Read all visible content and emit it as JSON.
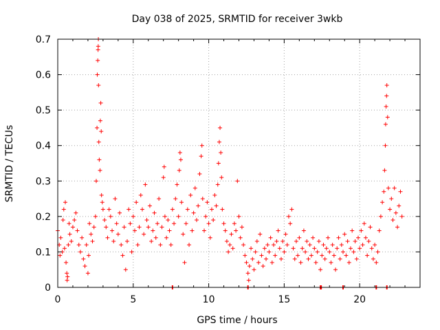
{
  "chart_data": {
    "type": "scatter",
    "title": "Day 038 of 2025, SRMTID for receiver 3wkb",
    "xlabel": "GPS time / hours",
    "ylabel": "SRMTID / TECUs",
    "xlim": [
      0,
      24
    ],
    "ylim": [
      0,
      0.7
    ],
    "xticks": [
      0,
      5,
      10,
      15,
      20
    ],
    "yticks": [
      0,
      0.1,
      0.2,
      0.3,
      0.4,
      0.5,
      0.6,
      0.7
    ],
    "ytick_labels": [
      "0",
      "0.1",
      "0.2",
      "0.3",
      "0.4",
      "0.5",
      "0.6",
      "0.7"
    ],
    "grid": true,
    "marker": "+",
    "marker_color": "#ff0000",
    "grid_color": "#a0a0a0",
    "series": [
      {
        "name": "SRMTID",
        "points": [
          [
            0.0,
            0.16
          ],
          [
            0.1,
            0.12
          ],
          [
            0.15,
            0.09
          ],
          [
            0.2,
            0.14
          ],
          [
            0.3,
            0.1
          ],
          [
            0.35,
            0.19
          ],
          [
            0.4,
            0.22
          ],
          [
            0.45,
            0.11
          ],
          [
            0.5,
            0.24
          ],
          [
            0.55,
            0.07
          ],
          [
            0.6,
            0.04
          ],
          [
            0.62,
            0.02
          ],
          [
            0.65,
            0.03
          ],
          [
            0.7,
            0.12
          ],
          [
            0.75,
            0.18
          ],
          [
            0.8,
            0.15
          ],
          [
            0.9,
            0.13
          ],
          [
            1.0,
            0.17
          ],
          [
            1.1,
            0.19
          ],
          [
            1.2,
            0.21
          ],
          [
            1.3,
            0.16
          ],
          [
            1.4,
            0.12
          ],
          [
            1.5,
            0.1
          ],
          [
            1.6,
            0.14
          ],
          [
            1.7,
            0.08
          ],
          [
            1.8,
            0.06
          ],
          [
            1.9,
            0.12
          ],
          [
            2.0,
            0.04
          ],
          [
            2.05,
            0.09
          ],
          [
            2.1,
            0.18
          ],
          [
            2.2,
            0.15
          ],
          [
            2.3,
            0.13
          ],
          [
            2.4,
            0.17
          ],
          [
            2.5,
            0.2
          ],
          [
            2.55,
            0.3
          ],
          [
            2.6,
            0.45
          ],
          [
            2.62,
            0.6
          ],
          [
            2.65,
            0.64
          ],
          [
            2.67,
            0.67
          ],
          [
            2.68,
            0.68
          ],
          [
            2.69,
            0.7
          ],
          [
            2.7,
            0.57
          ],
          [
            2.72,
            0.41
          ],
          [
            2.75,
            0.36
          ],
          [
            2.8,
            0.33
          ],
          [
            2.82,
            0.47
          ],
          [
            2.85,
            0.52
          ],
          [
            2.88,
            0.44
          ],
          [
            2.9,
            0.26
          ],
          [
            2.95,
            0.24
          ],
          [
            3.0,
            0.22
          ],
          [
            3.1,
            0.19
          ],
          [
            3.2,
            0.17
          ],
          [
            3.3,
            0.14
          ],
          [
            3.4,
            0.22
          ],
          [
            3.5,
            0.2
          ],
          [
            3.6,
            0.16
          ],
          [
            3.7,
            0.13
          ],
          [
            3.8,
            0.25
          ],
          [
            3.9,
            0.18
          ],
          [
            4.0,
            0.15
          ],
          [
            4.1,
            0.21
          ],
          [
            4.2,
            0.12
          ],
          [
            4.3,
            0.09
          ],
          [
            4.4,
            0.17
          ],
          [
            4.5,
            0.05
          ],
          [
            4.6,
            0.13
          ],
          [
            4.7,
            0.22
          ],
          [
            4.8,
            0.18
          ],
          [
            4.9,
            0.1
          ],
          [
            5.0,
            0.2
          ],
          [
            5.1,
            0.16
          ],
          [
            5.2,
            0.24
          ],
          [
            5.3,
            0.12
          ],
          [
            5.4,
            0.17
          ],
          [
            5.5,
            0.26
          ],
          [
            5.6,
            0.22
          ],
          [
            5.7,
            0.15
          ],
          [
            5.8,
            0.29
          ],
          [
            5.9,
            0.19
          ],
          [
            6.0,
            0.17
          ],
          [
            6.1,
            0.23
          ],
          [
            6.2,
            0.13
          ],
          [
            6.3,
            0.16
          ],
          [
            6.4,
            0.21
          ],
          [
            6.5,
            0.14
          ],
          [
            6.6,
            0.18
          ],
          [
            6.7,
            0.25
          ],
          [
            6.8,
            0.12
          ],
          [
            6.9,
            0.17
          ],
          [
            7.0,
            0.31
          ],
          [
            7.05,
            0.34
          ],
          [
            7.1,
            0.2
          ],
          [
            7.2,
            0.14
          ],
          [
            7.3,
            0.19
          ],
          [
            7.4,
            0.16
          ],
          [
            7.5,
            0.12
          ],
          [
            7.6,
            0.22
          ],
          [
            7.7,
            0.18
          ],
          [
            7.8,
            0.25
          ],
          [
            7.9,
            0.29
          ],
          [
            8.0,
            0.2
          ],
          [
            8.05,
            0.33
          ],
          [
            8.1,
            0.38
          ],
          [
            8.15,
            0.36
          ],
          [
            8.2,
            0.24
          ],
          [
            8.3,
            0.15
          ],
          [
            8.4,
            0.07
          ],
          [
            8.5,
            0.18
          ],
          [
            8.6,
            0.22
          ],
          [
            8.7,
            0.12
          ],
          [
            8.8,
            0.26
          ],
          [
            8.9,
            0.16
          ],
          [
            9.0,
            0.21
          ],
          [
            9.1,
            0.28
          ],
          [
            9.2,
            0.19
          ],
          [
            9.3,
            0.23
          ],
          [
            9.4,
            0.32
          ],
          [
            9.5,
            0.37
          ],
          [
            9.55,
            0.4
          ],
          [
            9.6,
            0.25
          ],
          [
            9.7,
            0.16
          ],
          [
            9.8,
            0.2
          ],
          [
            9.9,
            0.24
          ],
          [
            10.0,
            0.18
          ],
          [
            10.1,
            0.14
          ],
          [
            10.2,
            0.22
          ],
          [
            10.3,
            0.19
          ],
          [
            10.4,
            0.26
          ],
          [
            10.5,
            0.23
          ],
          [
            10.6,
            0.29
          ],
          [
            10.65,
            0.35
          ],
          [
            10.7,
            0.41
          ],
          [
            10.75,
            0.45
          ],
          [
            10.8,
            0.38
          ],
          [
            10.85,
            0.31
          ],
          [
            10.9,
            0.22
          ],
          [
            11.0,
            0.18
          ],
          [
            11.1,
            0.16
          ],
          [
            11.2,
            0.13
          ],
          [
            11.3,
            0.1
          ],
          [
            11.4,
            0.12
          ],
          [
            11.5,
            0.15
          ],
          [
            11.6,
            0.11
          ],
          [
            11.7,
            0.18
          ],
          [
            11.8,
            0.16
          ],
          [
            11.9,
            0.3
          ],
          [
            12.0,
            0.2
          ],
          [
            12.1,
            0.14
          ],
          [
            12.2,
            0.17
          ],
          [
            12.3,
            0.12
          ],
          [
            12.4,
            0.09
          ],
          [
            12.5,
            0.07
          ],
          [
            12.6,
            0.04
          ],
          [
            12.65,
            0.02
          ],
          [
            12.7,
            0.06
          ],
          [
            12.8,
            0.11
          ],
          [
            12.9,
            0.08
          ],
          [
            13.0,
            0.05
          ],
          [
            13.1,
            0.1
          ],
          [
            13.2,
            0.13
          ],
          [
            13.3,
            0.07
          ],
          [
            13.4,
            0.15
          ],
          [
            13.5,
            0.09
          ],
          [
            13.6,
            0.06
          ],
          [
            13.7,
            0.11
          ],
          [
            13.8,
            0.08
          ],
          [
            13.9,
            0.12
          ],
          [
            14.0,
            0.1
          ],
          [
            14.1,
            0.14
          ],
          [
            14.2,
            0.07
          ],
          [
            14.3,
            0.12
          ],
          [
            14.4,
            0.09
          ],
          [
            14.5,
            0.13
          ],
          [
            14.6,
            0.16
          ],
          [
            14.7,
            0.11
          ],
          [
            14.8,
            0.08
          ],
          [
            14.9,
            0.13
          ],
          [
            15.0,
            0.1
          ],
          [
            15.1,
            0.15
          ],
          [
            15.2,
            0.12
          ],
          [
            15.3,
            0.2
          ],
          [
            15.4,
            0.18
          ],
          [
            15.5,
            0.22
          ],
          [
            15.6,
            0.11
          ],
          [
            15.7,
            0.08
          ],
          [
            15.8,
            0.13
          ],
          [
            15.9,
            0.09
          ],
          [
            16.0,
            0.14
          ],
          [
            16.1,
            0.07
          ],
          [
            16.2,
            0.11
          ],
          [
            16.3,
            0.16
          ],
          [
            16.4,
            0.1
          ],
          [
            16.5,
            0.13
          ],
          [
            16.6,
            0.08
          ],
          [
            16.7,
            0.12
          ],
          [
            16.8,
            0.09
          ],
          [
            16.9,
            0.14
          ],
          [
            17.0,
            0.11
          ],
          [
            17.1,
            0.07
          ],
          [
            17.2,
            0.1
          ],
          [
            17.3,
            0.13
          ],
          [
            17.4,
            0.05
          ],
          [
            17.5,
            0.09
          ],
          [
            17.6,
            0.12
          ],
          [
            17.7,
            0.08
          ],
          [
            17.8,
            0.11
          ],
          [
            17.9,
            0.14
          ],
          [
            18.0,
            0.1
          ],
          [
            18.1,
            0.07
          ],
          [
            18.2,
            0.12
          ],
          [
            18.3,
            0.09
          ],
          [
            18.4,
            0.05
          ],
          [
            18.5,
            0.11
          ],
          [
            18.6,
            0.14
          ],
          [
            18.7,
            0.08
          ],
          [
            18.8,
            0.12
          ],
          [
            18.9,
            0.1
          ],
          [
            19.0,
            0.15
          ],
          [
            19.1,
            0.09
          ],
          [
            19.2,
            0.13
          ],
          [
            19.3,
            0.07
          ],
          [
            19.4,
            0.11
          ],
          [
            19.5,
            0.16
          ],
          [
            19.6,
            0.1
          ],
          [
            19.7,
            0.13
          ],
          [
            19.8,
            0.08
          ],
          [
            19.9,
            0.14
          ],
          [
            20.0,
            0.11
          ],
          [
            20.1,
            0.16
          ],
          [
            20.2,
            0.12
          ],
          [
            20.3,
            0.18
          ],
          [
            20.4,
            0.14
          ],
          [
            20.5,
            0.09
          ],
          [
            20.6,
            0.13
          ],
          [
            20.7,
            0.17
          ],
          [
            20.8,
            0.11
          ],
          [
            20.9,
            0.08
          ],
          [
            21.0,
            0.12
          ],
          [
            21.1,
            0.07
          ],
          [
            21.2,
            0.1
          ],
          [
            21.3,
            0.16
          ],
          [
            21.4,
            0.2
          ],
          [
            21.5,
            0.24
          ],
          [
            21.6,
            0.27
          ],
          [
            21.65,
            0.33
          ],
          [
            21.7,
            0.4
          ],
          [
            21.72,
            0.46
          ],
          [
            21.75,
            0.51
          ],
          [
            21.78,
            0.54
          ],
          [
            21.8,
            0.57
          ],
          [
            21.85,
            0.48
          ],
          [
            21.9,
            0.28
          ],
          [
            22.0,
            0.22
          ],
          [
            22.1,
            0.25
          ],
          [
            22.2,
            0.19
          ],
          [
            22.3,
            0.28
          ],
          [
            22.4,
            0.21
          ],
          [
            22.5,
            0.17
          ],
          [
            22.6,
            0.23
          ],
          [
            22.7,
            0.27
          ],
          [
            22.8,
            0.2
          ]
        ]
      }
    ],
    "zero_markers_x": [
      7.6,
      12.6,
      17.4,
      17.45,
      18.9,
      21.1,
      21.8
    ]
  }
}
